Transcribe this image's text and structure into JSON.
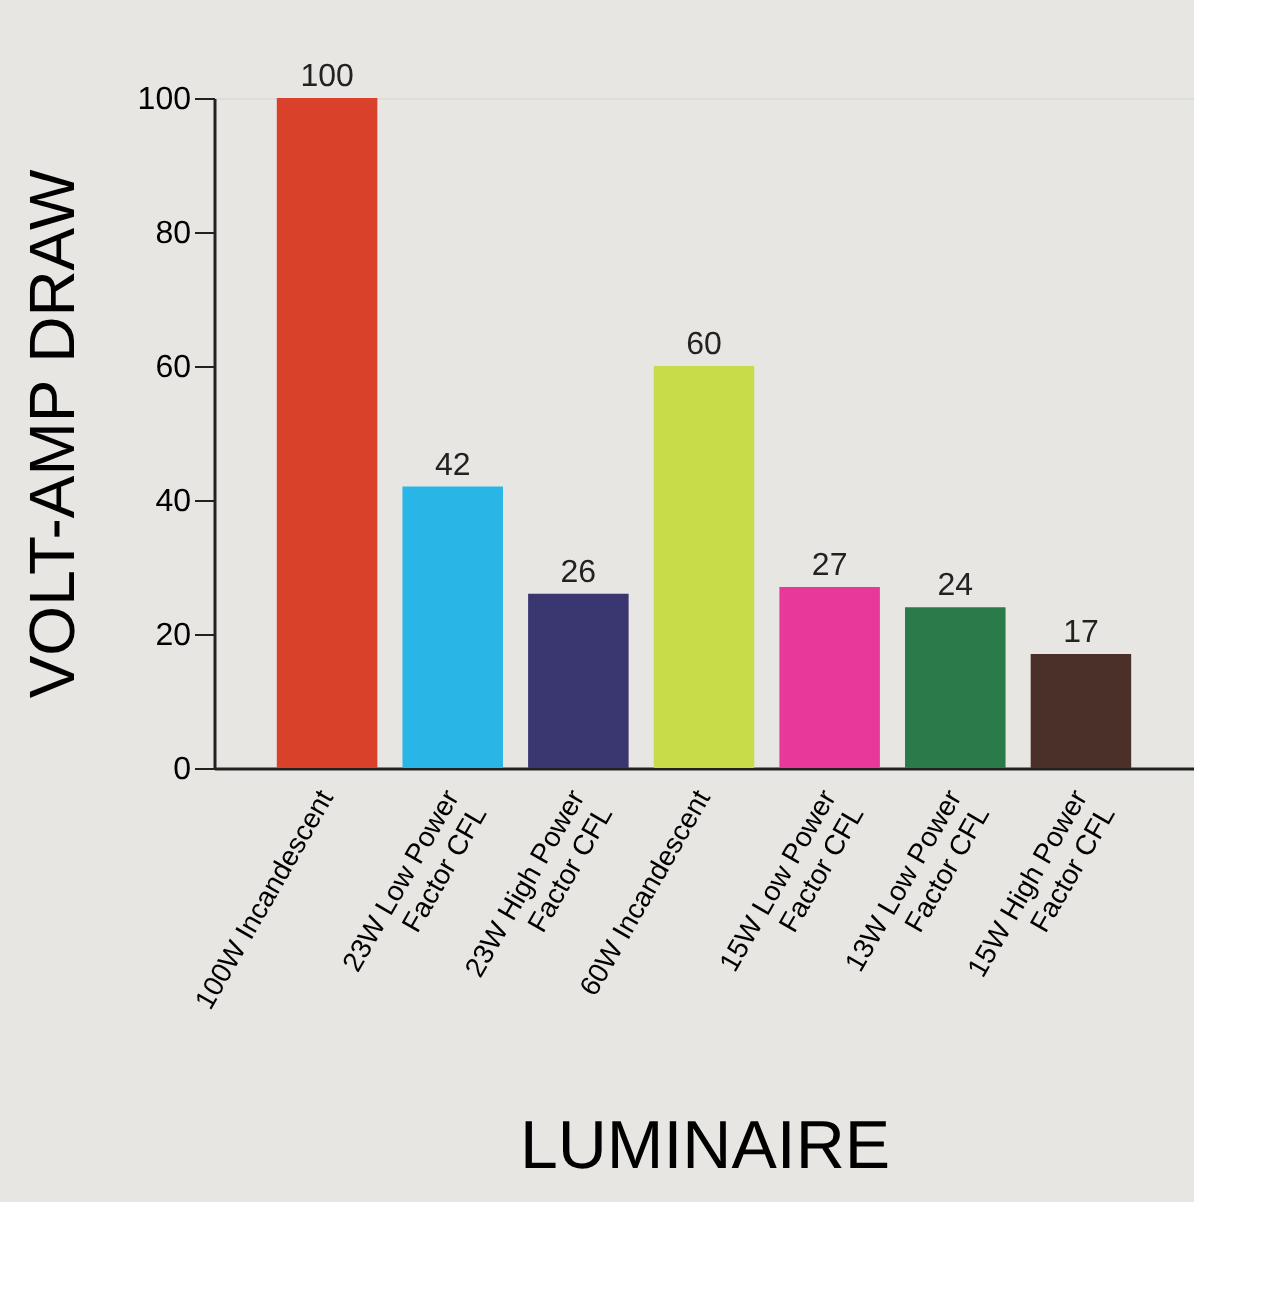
{
  "chart_data": {
    "type": "bar",
    "xlabel": "LUMINAIRE",
    "ylabel": "VOLT-AMP DRAW",
    "categories": [
      "100W Incandescent",
      "23W Low Power\nFactor CFL",
      "23W High Power\nFactor CFL",
      "60W Incandescent",
      "15W Low Power\nFactor CFL",
      "13W Low Power\nFactor CFL",
      "15W High Power\nFactor CFL"
    ],
    "values": [
      100,
      42,
      26,
      60,
      27,
      24,
      17
    ],
    "colors": [
      "#d9412b",
      "#29b5e5",
      "#3a3670",
      "#c8dc4a",
      "#e8389a",
      "#2a7a4a",
      "#4a3028"
    ],
    "ylim": [
      0,
      100
    ],
    "yticks": [
      0,
      20,
      40,
      60,
      80,
      100
    ],
    "grid": false,
    "data_labels": true
  }
}
